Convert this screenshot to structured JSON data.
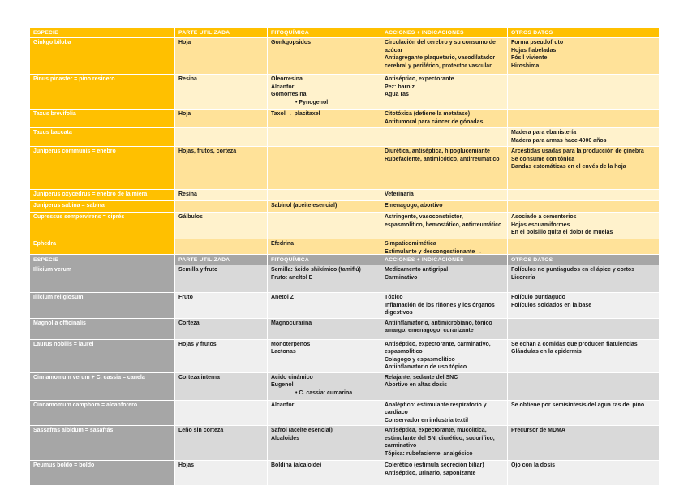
{
  "document": {
    "type": "table-notes-page",
    "language": "es",
    "colors": {
      "table1_header_bg": "#FFC000",
      "table1_band_dark": "#FFE299",
      "table1_band_light": "#FFF2CC",
      "table2_header_bg": "#A6A6A6",
      "table2_band_dark": "#D9D9D9",
      "table2_band_light": "#EFEFEF",
      "header_text": "#FFFFFF",
      "body_text": "#1A1A1A",
      "page_bg": "#FFFFFF"
    }
  },
  "tables": [
    {
      "id": "table1",
      "name": "gymnosperms-table",
      "theme": "gold",
      "columns": [
        "ESPECIE",
        "PARTE UTILIZADA",
        "FITOQUÍMICA",
        "ACCIONES + INDICACIONES",
        "OTROS DATOS"
      ],
      "rows": [
        {
          "especie": "Ginkgo biloba",
          "parte": [
            "Hoja"
          ],
          "fito": [
            "Gonkgopsidos"
          ],
          "acciones": [
            "Circulación del cerebro y su consumo de azúcar",
            "Antiagregante plaquetario, vasodilatador cerebral y periférico, protector vascular"
          ],
          "otros": [
            "Forma pseudofruto",
            "Hojas flabeladas",
            "Fósil viviente",
            "Hiroshima"
          ]
        },
        {
          "especie": "Pinus pinaster = pino resinero",
          "parte": [
            "Resina"
          ],
          "fito": [
            "Oleorresina",
            "Alcanfor",
            "Gomorresina",
            "• Pynogenol"
          ],
          "acciones": [
            "Antiséptico, expectorante",
            "Pez: barniz",
            "Agua ras"
          ],
          "otros": []
        },
        {
          "especie": "Taxus brevifolia",
          "parte": [
            "Hoja"
          ],
          "fito": [
            "Taxol → placitaxel"
          ],
          "acciones": [
            "Citotóxica (detiene la metafase)",
            "Antitumoral para cáncer de gónadas"
          ],
          "otros": []
        },
        {
          "especie": "Taxus baccata",
          "parte": [],
          "fito": [],
          "acciones": [],
          "otros": [
            "Madera para ebanistería",
            "Madera para armas hace 4000 años"
          ]
        },
        {
          "especie": "Juniperus communis = enebro",
          "parte": [
            "Hojas, frutos, corteza"
          ],
          "fito": [],
          "acciones": [
            "Diurética, antiséptica, hipoglucemiante",
            "Rubefaciente, antimicótico, antirreumático"
          ],
          "otros": [
            "Arcéstidas usadas para la producción de ginebra",
            "Se consume con tónica",
            "Bandas estomáticas en el envés de la hoja"
          ]
        },
        {
          "especie": "Juniperus oxycedrus = enebro de la miera",
          "parte": [
            "Resina"
          ],
          "fito": [],
          "acciones": [
            "Veterinaria"
          ],
          "otros": []
        },
        {
          "especie": "Juniperus sabina = sabina",
          "parte": [],
          "fito": [
            "Sabinol (aceite esencial)"
          ],
          "acciones": [
            "Emenagogo, abortivo"
          ],
          "otros": []
        },
        {
          "especie": "Cupressus sempervirens = ciprés",
          "parte": [
            "Gálbulos"
          ],
          "fito": [],
          "acciones": [
            "Astringente, vasoconstrictor, espasmolítico, hemostático, antirreumático"
          ],
          "otros": [
            "Asociado a cementerios",
            "Hojas escuamiformes",
            "En el bolsillo quita el dolor de muelas"
          ]
        },
        {
          "especie": "Ephedra",
          "parte": [],
          "fito": [
            "Efedrina"
          ],
          "acciones": [
            "Simpaticomimética",
            "Estimulante y descongestionante → antihistamínicos"
          ],
          "otros": []
        }
      ]
    },
    {
      "id": "table2",
      "name": "angiosperms-table",
      "theme": "gray",
      "columns": [
        "ESPECIE",
        "PARTE UTILIZADA",
        "FITOQUÍMICA",
        "ACCIONES + INDICACIONES",
        "OTROS DATOS"
      ],
      "rows": [
        {
          "especie": "Illicium verum",
          "parte": [
            "Semilla y fruto"
          ],
          "fito": [
            "Semilla: ácido shikímico (tamiflú)",
            "Fruto: aneltol E"
          ],
          "acciones": [
            "Medicamento antigripal",
            "Carminativo"
          ],
          "otros": [
            "Folículos no puntiagudos en el ápice y cortos",
            "Licorería"
          ]
        },
        {
          "especie": "Illicium religiosum",
          "parte": [
            "Fruto"
          ],
          "fito": [
            "Anetol Z"
          ],
          "acciones": [
            "Tóxico",
            "Inflamación de los riñones y los órganos digestivos"
          ],
          "otros": [
            "Folículo puntiagudo",
            "Folículos soldados en la base"
          ]
        },
        {
          "especie": "Magnolia officinalis",
          "parte": [
            "Corteza"
          ],
          "fito": [
            "Magnocurarina"
          ],
          "acciones": [
            "Antiinflamatorio, antimicrobiano, tónico amargo, emenagogo, curarizante"
          ],
          "otros": []
        },
        {
          "especie": "Laurus nobilis = laurel",
          "parte": [
            "Hojas y frutos"
          ],
          "fito": [
            "Monoterpenos",
            "Lactonas"
          ],
          "acciones": [
            "Antiséptico, expectorante, carminativo, espasmolítico",
            "Colagogo y espasmolítico",
            "Antiinflamatorio de uso tópico"
          ],
          "otros": [
            "Se echan a comidas que producen flatulencias",
            "Glándulas en la epidermis"
          ]
        },
        {
          "especie": "Cinnamomum verum + C. cassia = canela",
          "parte": [
            "Corteza interna"
          ],
          "fito": [
            "Acido cinámico",
            "Eugenol",
            "• C. cassia: cumarina"
          ],
          "acciones": [
            "Relajante, sedante del SNC",
            "Abortivo en altas dosis"
          ],
          "otros": []
        },
        {
          "especie": "Cinnamomum camphora = alcanforero",
          "parte": [],
          "fito": [
            "Alcanfor"
          ],
          "acciones": [
            "Analéptico: estimulante respiratorio y cardiaco",
            "Conservador en industria textil"
          ],
          "otros": [
            "Se obtiene por semisíntesis del agua ras del pino"
          ]
        },
        {
          "especie": "Sassafras albidum = sasafrás",
          "parte": [
            "Leño sin corteza"
          ],
          "fito": [
            "Safrol (aceite esencial)",
            "Alcaloides"
          ],
          "acciones": [
            "Antiséptica, expectorante, mucolítica, estimulante del SN, diurético, sudorífico, carminativo",
            "Tópica: rubefaciente, analgésico"
          ],
          "otros": [
            "Precursor de MDMA"
          ]
        },
        {
          "especie": "Peumus boldo = boldo",
          "parte": [
            "Hojas"
          ],
          "fito": [
            "Boldina (alcaloide)"
          ],
          "acciones": [
            "Colerético (estimula secreción biliar)",
            "Antiséptico, urinario, saponizante"
          ],
          "otros": [
            "Ojo con la dosis"
          ]
        }
      ]
    }
  ]
}
